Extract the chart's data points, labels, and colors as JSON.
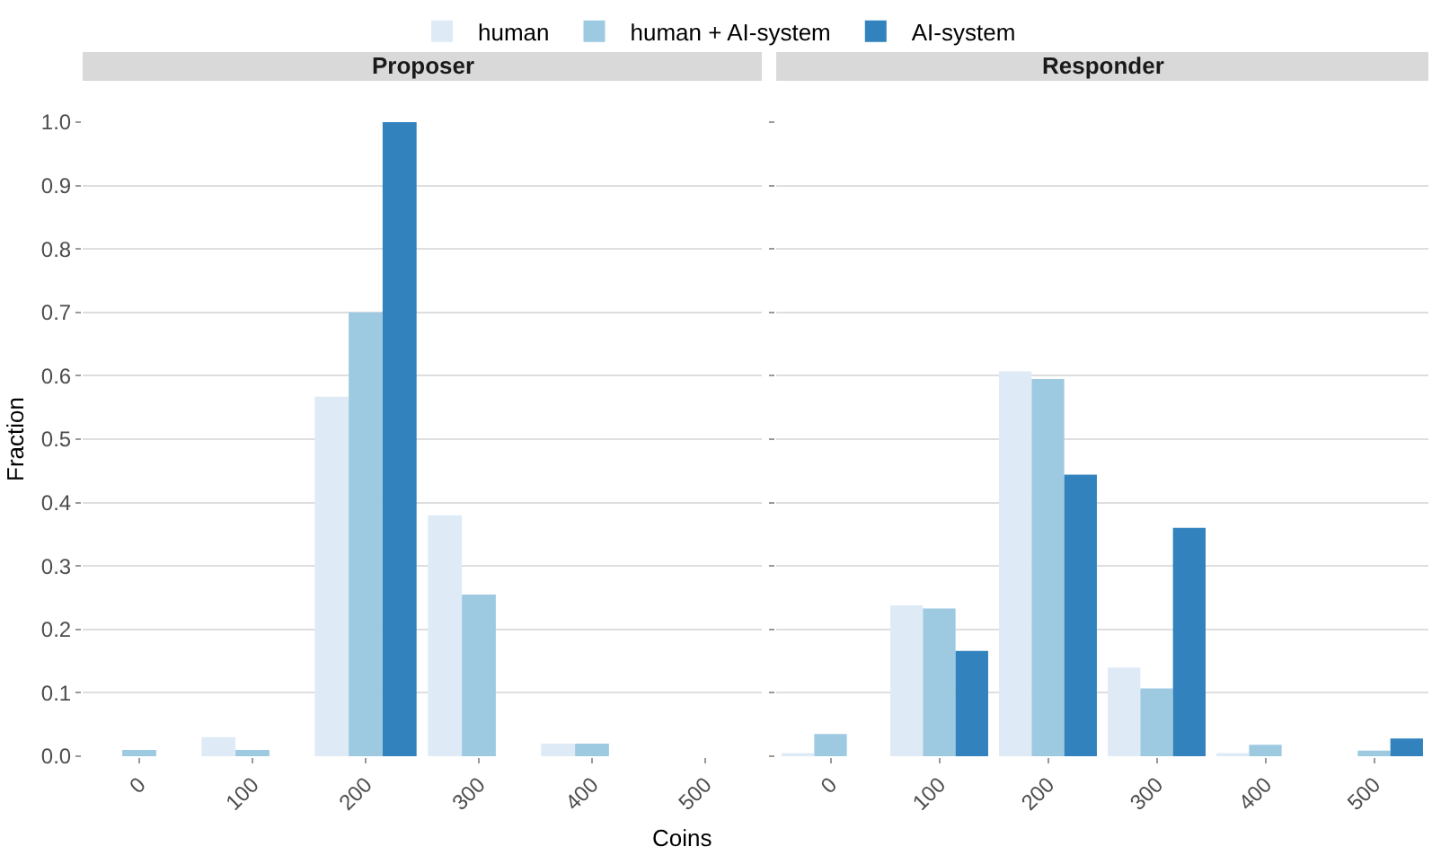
{
  "chart_data": [
    {
      "type": "bar",
      "title": "Proposer",
      "xlabel": "Coins",
      "ylabel": "Fraction",
      "categories": [
        "0",
        "100",
        "200",
        "300",
        "400",
        "500"
      ],
      "ylim": [
        0,
        1
      ],
      "yticks": [
        {
          "value": 0,
          "label": "0.0"
        },
        0.1,
        0.2,
        0.3,
        0.4,
        0.5,
        0.6,
        0.7,
        0.8,
        0.9,
        {
          "value": 1,
          "label": "1.0"
        }
      ],
      "grid": "y",
      "legend": "top",
      "series": [
        {
          "name": "human",
          "color": "#deebf7",
          "values": [
            0,
            0.03,
            0.567,
            0.38,
            0.02,
            0
          ]
        },
        {
          "name": "human + AI-system",
          "color": "#9ecae1",
          "values": [
            0.01,
            0.01,
            0.7,
            0.255,
            0.02,
            0
          ]
        },
        {
          "name": "AI-system",
          "color": "#3182bd",
          "values": [
            0,
            0,
            1.0,
            0,
            0,
            0
          ]
        }
      ]
    },
    {
      "type": "bar",
      "title": "Responder",
      "categories": [
        "0",
        "100",
        "200",
        "300",
        "400",
        "500"
      ],
      "ylim": [
        0,
        1
      ],
      "yticks": [
        0,
        0.1,
        0.2,
        0.3,
        0.4,
        0.5,
        0.6,
        0.7,
        0.8,
        0.9,
        1
      ],
      "grid": "y",
      "tick_labels": "x",
      "series": [
        {
          "color": "#deebf7",
          "values": [
            0.005,
            0.238,
            0.607,
            0.14,
            0.005,
            0
          ]
        },
        {
          "color": "#9ecae1",
          "values": [
            0.035,
            0.233,
            0.595,
            0.107,
            0.018,
            0.009
          ]
        },
        {
          "color": "#3182bd",
          "values": [
            0,
            0.166,
            0.444,
            0.36,
            0,
            0.028
          ]
        }
      ]
    }
  ]
}
